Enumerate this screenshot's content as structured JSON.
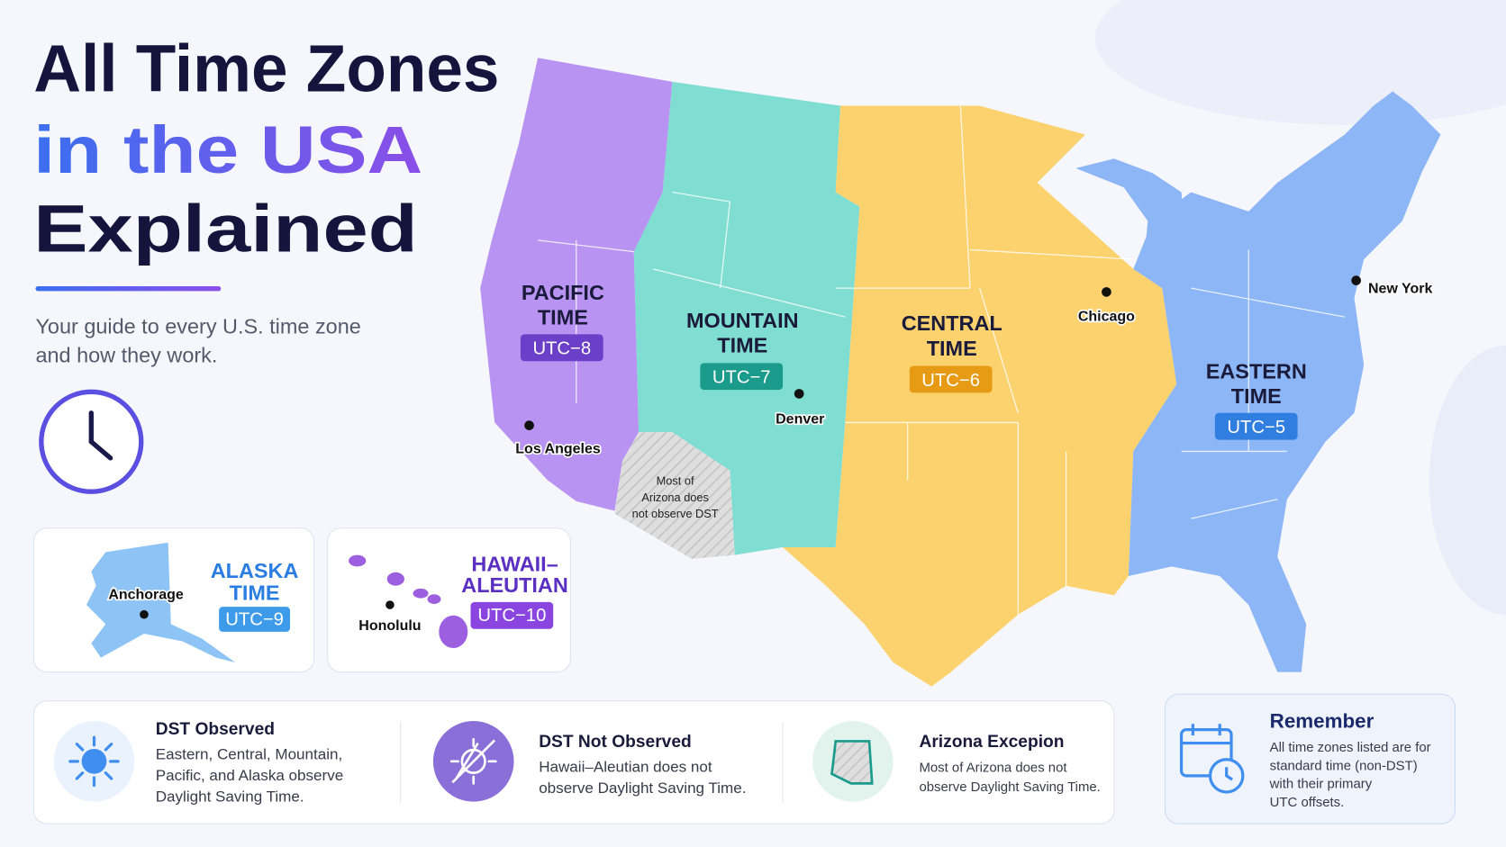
{
  "header": {
    "title": [
      "All Time Zones",
      "in the USA",
      "Explained"
    ],
    "subtitle": [
      "Your guide to every U.S. time zone",
      "and how they work."
    ]
  },
  "map": {
    "zones": [
      {
        "name": [
          "PACIFIC",
          "TIME"
        ],
        "offset": "UTC−8"
      },
      {
        "name": [
          "MOUNTAIN",
          "TIME"
        ],
        "offset": "UTC−7"
      },
      {
        "name": [
          "CENTRAL",
          "TIME"
        ],
        "offset": "UTC−6"
      },
      {
        "name": [
          "EASTERN",
          "TIME"
        ],
        "offset": "UTC−5"
      }
    ],
    "cities": [
      "Los Angeles",
      "Denver",
      "Chicago",
      "New York"
    ],
    "arizona_note": [
      "Most of",
      "Arizona does",
      "not observe DST"
    ]
  },
  "insets": [
    {
      "name": [
        "ALASKA",
        "TIME"
      ],
      "offset": "UTC−9",
      "city": "Anchorage"
    },
    {
      "name": [
        "HAWAII–",
        "ALEUTIAN"
      ],
      "offset": "UTC−10",
      "city": "Honolulu"
    }
  ],
  "info_cards": [
    {
      "title": "DST Observed",
      "text": [
        "Eastern, Central, Mountain,",
        "Pacific, and Alaska observe",
        "Daylight Saving Time."
      ]
    },
    {
      "title": "DST Not Observed",
      "text": [
        "Hawaii–Aleutian does not",
        "observe Daylight Saving Time."
      ]
    },
    {
      "title": "Arizona Excepion",
      "text": [
        "Most of Arizona does not",
        "observe Daylight Saving Time."
      ]
    }
  ],
  "remember": {
    "title": "Remember",
    "text": [
      "All time zones listed are for",
      "standard time (non-DST)",
      "with their primary",
      "UTC offsets."
    ]
  }
}
